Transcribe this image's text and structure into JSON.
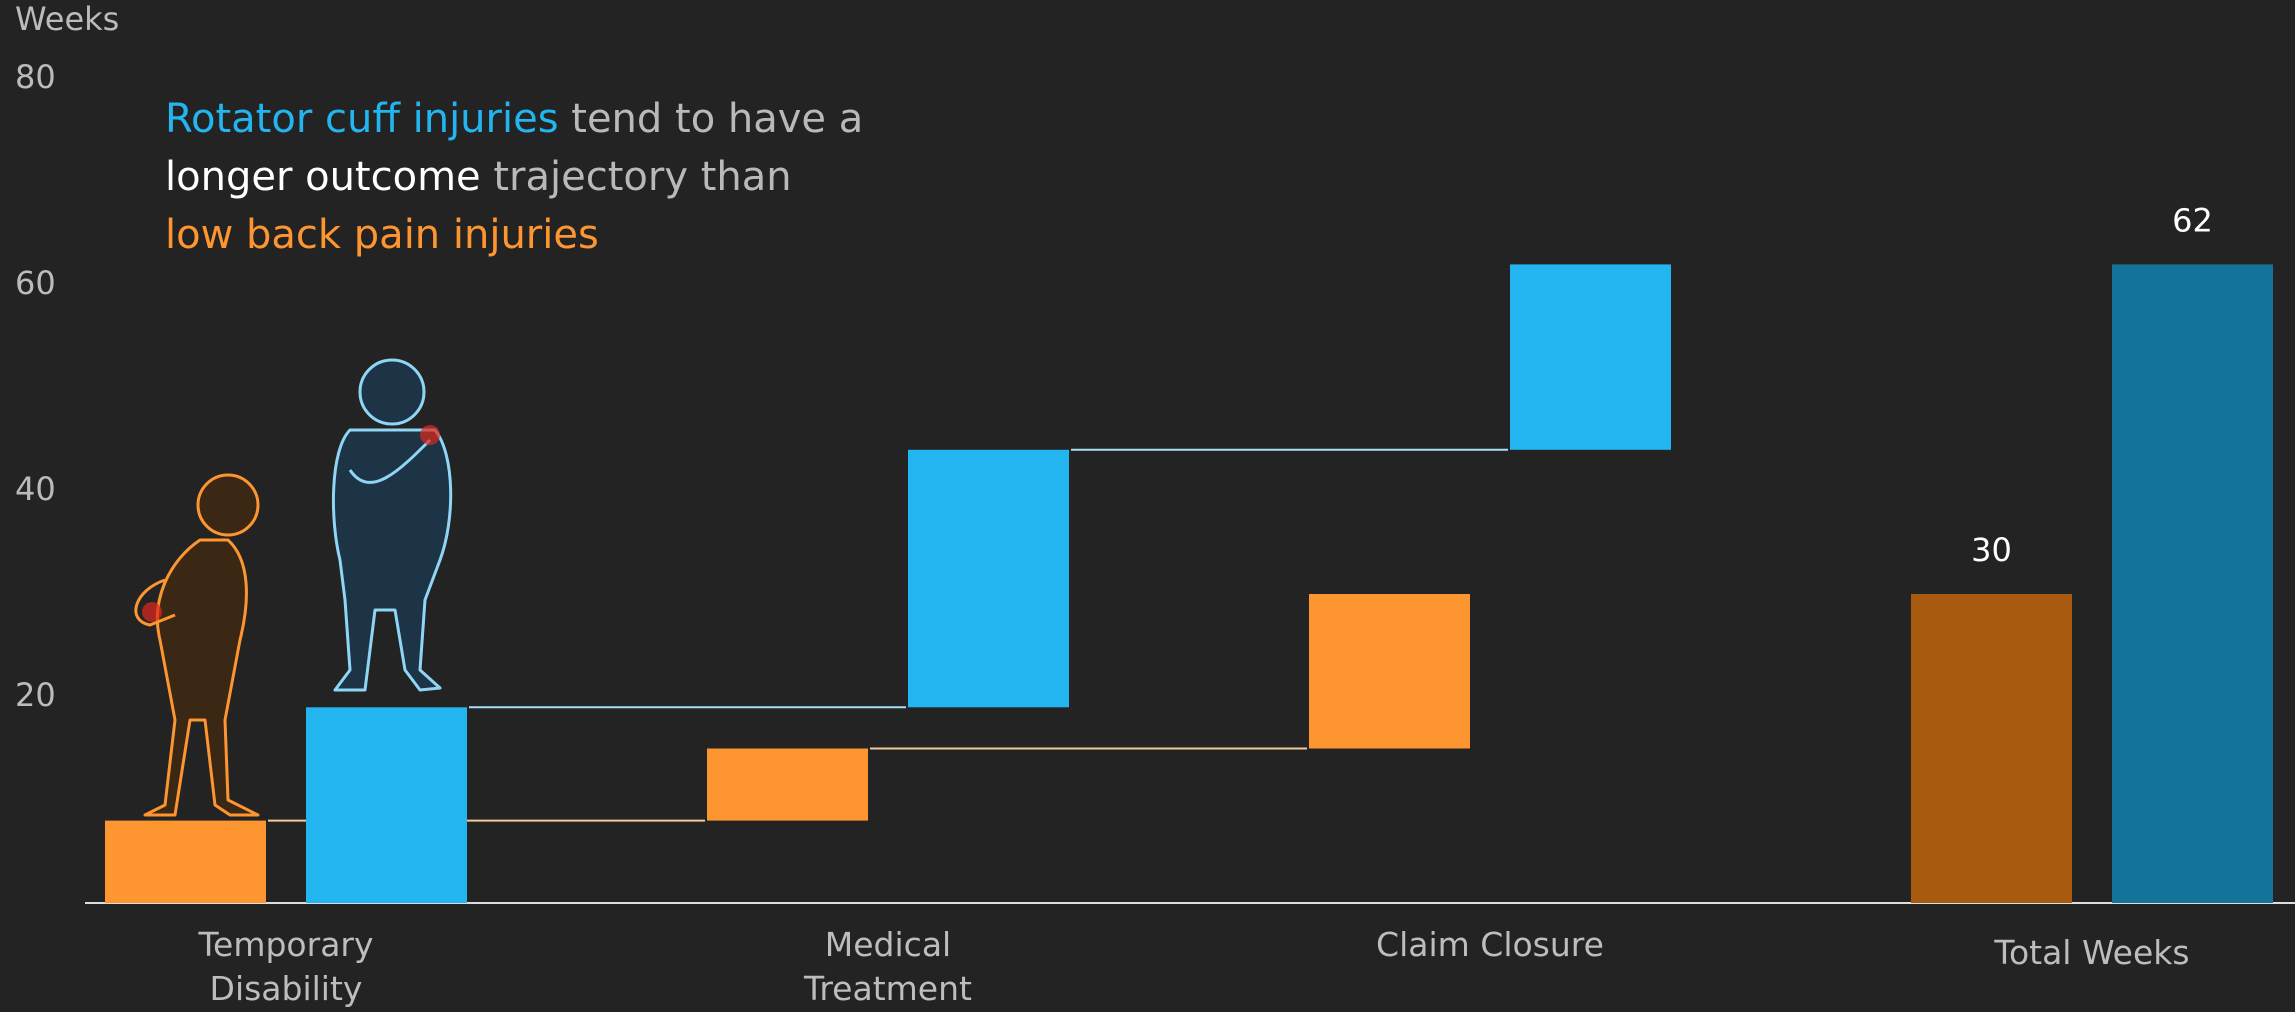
{
  "chart_data": {
    "type": "waterfall",
    "y_label": "Weeks",
    "annotation": [
      [
        "Rotator cuff injuries",
        "tend to have a"
      ],
      [
        "longer outcome",
        "trajectory than"
      ],
      [
        "low back pain injuries"
      ]
    ],
    "categories": [
      "Temporary Disability",
      "Medical Treatment",
      "Claim Closure",
      "Total Weeks"
    ],
    "series": [
      {
        "name": "low back pain injuries",
        "color": "#fd9531",
        "total_color": "#a85a0f",
        "values": [
          8,
          7,
          15,
          30
        ]
      },
      {
        "name": "Rotator cuff injuries",
        "color": "#22b5f0",
        "total_color": "#13739a",
        "values": [
          19,
          25,
          18,
          62
        ]
      }
    ],
    "ylim": [
      0,
      80
    ],
    "yticks": [
      20,
      40,
      60,
      80
    ],
    "grid": false
  }
}
